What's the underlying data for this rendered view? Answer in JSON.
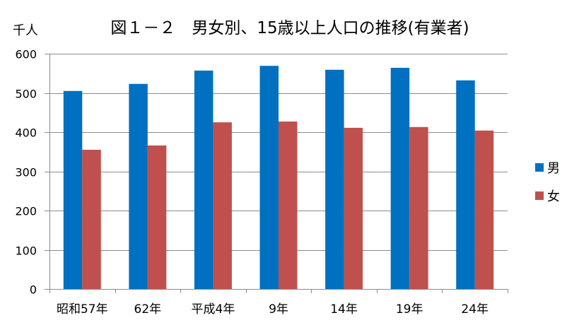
{
  "chart_data": {
    "type": "bar",
    "title": "図１－２　男女別、15歳以上人口の推移(有業者)",
    "ylabel": "千人",
    "xlabel": "",
    "categories": [
      "昭和57年",
      "62年",
      "平成4年",
      "9年",
      "14年",
      "19年",
      "24年"
    ],
    "series": [
      {
        "name": "男",
        "color": "#0070C0",
        "values": [
          505,
          523,
          557,
          569,
          559,
          564,
          532
        ]
      },
      {
        "name": "女",
        "color": "#C0504D",
        "values": [
          355,
          366,
          425,
          427,
          411,
          413,
          404
        ]
      }
    ],
    "ylim": [
      0,
      600
    ],
    "yticks": [
      0,
      100,
      200,
      300,
      400,
      500,
      600
    ],
    "grid": true,
    "legend": "right"
  }
}
